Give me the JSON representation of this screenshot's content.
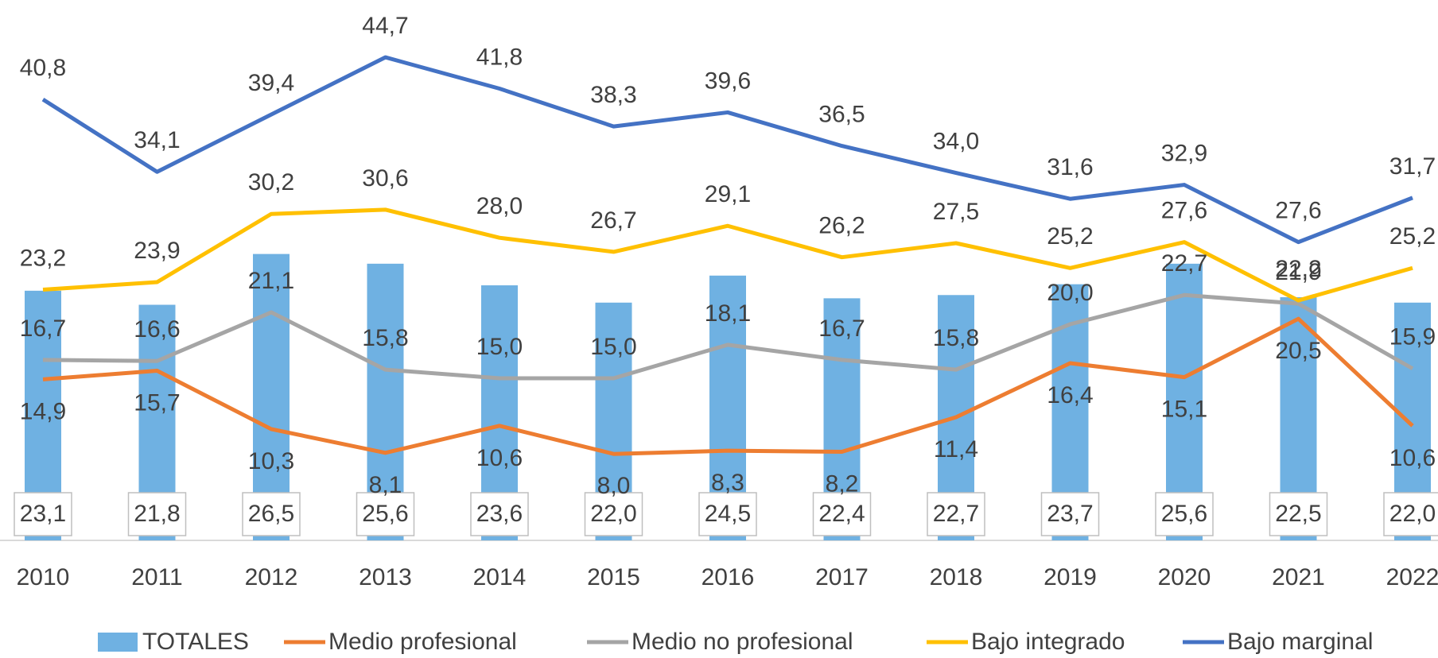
{
  "chart_data": {
    "type": "bar_line",
    "categories": [
      "2010",
      "2011",
      "2012",
      "2013",
      "2014",
      "2015",
      "2016",
      "2017",
      "2018",
      "2019",
      "2020",
      "2021",
      "2022"
    ],
    "ylim": [
      0,
      50
    ],
    "series": [
      {
        "name": "TOTALES",
        "type": "bar",
        "color": "#6fb1e2",
        "values": [
          23.1,
          21.8,
          26.5,
          25.6,
          23.6,
          22.0,
          24.5,
          22.4,
          22.7,
          23.7,
          25.6,
          22.5,
          22.0
        ],
        "value_labels": [
          "23,1",
          "21,8",
          "26,5",
          "25,6",
          "23,6",
          "22,0",
          "24,5",
          "22,4",
          "22,7",
          "23,7",
          "25,6",
          "22,5",
          "22,0"
        ]
      },
      {
        "name": "Medio profesional",
        "type": "line",
        "color": "#ed7d31",
        "values": [
          14.9,
          15.7,
          10.3,
          8.1,
          10.6,
          8.0,
          8.3,
          8.2,
          11.4,
          16.4,
          15.1,
          20.5,
          10.6
        ],
        "value_labels": [
          "14,9",
          "15,7",
          "10,3",
          "8,1",
          "10,6",
          "8,0",
          "8,3",
          "8,2",
          "11,4",
          "16,4",
          "15,1",
          "20,5",
          "10,6"
        ]
      },
      {
        "name": "Medio no profesional",
        "type": "line",
        "color": "#a5a5a5",
        "values": [
          16.7,
          16.6,
          21.1,
          15.8,
          15.0,
          15.0,
          18.1,
          16.7,
          15.8,
          20.0,
          22.7,
          21.9,
          15.9
        ],
        "value_labels": [
          "16,7",
          "16,6",
          "21,1",
          "15,8",
          "15,0",
          "15,0",
          "18,1",
          "16,7",
          "15,8",
          "20,0",
          "22,7",
          "21,9",
          "15,9"
        ]
      },
      {
        "name": "Bajo integrado",
        "type": "line",
        "color": "#ffc000",
        "values": [
          23.2,
          23.9,
          30.2,
          30.6,
          28.0,
          26.7,
          29.1,
          26.2,
          27.5,
          25.2,
          27.6,
          22.2,
          25.2
        ],
        "value_labels": [
          "23,2",
          "23,9",
          "30,2",
          "30,6",
          "28,0",
          "26,7",
          "29,1",
          "26,2",
          "27,5",
          "25,2",
          "27,6",
          "22,2",
          "25,2"
        ]
      },
      {
        "name": "Bajo marginal",
        "type": "line",
        "color": "#4472c4",
        "values": [
          40.8,
          34.1,
          39.4,
          44.7,
          41.8,
          38.3,
          39.6,
          36.5,
          34.0,
          31.6,
          32.9,
          27.6,
          31.7
        ],
        "value_labels": [
          "40,8",
          "34,1",
          "39,4",
          "44,7",
          "41,8",
          "38,3",
          "39,6",
          "36,5",
          "34,0",
          "31,6",
          "32,9",
          "27,6",
          "31,7"
        ]
      }
    ]
  }
}
